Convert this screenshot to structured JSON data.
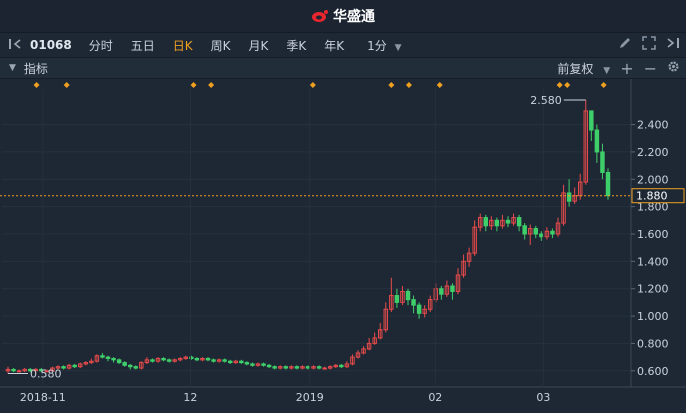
{
  "app": {
    "title": "华盛通"
  },
  "toolbar": {
    "stock_code": "01068",
    "periods": [
      "分时",
      "五日",
      "日K",
      "周K",
      "月K",
      "季K",
      "年K"
    ],
    "active_period": "日K",
    "interval": "1分"
  },
  "subbar": {
    "indicator_label": "指标",
    "adjust_label": "前复权"
  },
  "colors": {
    "up": "#e84b4b",
    "down": "#3fcf6a",
    "accent": "#f0a020",
    "background": "#1e2834"
  },
  "icons": [
    "expand-left-icon",
    "pencil-icon",
    "fullscreen-icon",
    "expand-right-icon",
    "collapse-icon",
    "plus-icon",
    "minus-icon",
    "gear-icon"
  ],
  "chart_data": {
    "type": "candlestick",
    "y_ticks": [
      "2.400",
      "2.200",
      "2.000",
      "1.800",
      "1.600",
      "1.400",
      "1.200",
      "1.000",
      "0.800",
      "0.600"
    ],
    "x_ticks": [
      "2018-11",
      "12",
      "2019",
      "02",
      "03"
    ],
    "ylim": [
      0.54,
      2.66
    ],
    "current_price": "1.880",
    "high_label": "2.580",
    "low_label": "0.580",
    "event_markers": 11,
    "candles": [
      [
        0.6,
        0.61,
        0.63,
        0.58
      ],
      [
        0.61,
        0.6,
        0.62,
        0.59
      ],
      [
        0.6,
        0.6,
        0.61,
        0.59
      ],
      [
        0.6,
        0.61,
        0.62,
        0.59
      ],
      [
        0.61,
        0.6,
        0.62,
        0.59
      ],
      [
        0.6,
        0.61,
        0.62,
        0.6
      ],
      [
        0.61,
        0.6,
        0.62,
        0.59
      ],
      [
        0.6,
        0.6,
        0.61,
        0.59
      ],
      [
        0.6,
        0.62,
        0.63,
        0.59
      ],
      [
        0.62,
        0.63,
        0.64,
        0.61
      ],
      [
        0.63,
        0.62,
        0.64,
        0.61
      ],
      [
        0.62,
        0.64,
        0.65,
        0.61
      ],
      [
        0.64,
        0.63,
        0.65,
        0.62
      ],
      [
        0.63,
        0.65,
        0.66,
        0.62
      ],
      [
        0.65,
        0.66,
        0.67,
        0.64
      ],
      [
        0.66,
        0.67,
        0.69,
        0.65
      ],
      [
        0.67,
        0.71,
        0.72,
        0.66
      ],
      [
        0.71,
        0.7,
        0.73,
        0.69
      ],
      [
        0.7,
        0.69,
        0.71,
        0.67
      ],
      [
        0.69,
        0.68,
        0.7,
        0.66
      ],
      [
        0.68,
        0.66,
        0.69,
        0.65
      ],
      [
        0.66,
        0.64,
        0.67,
        0.63
      ],
      [
        0.64,
        0.63,
        0.65,
        0.61
      ],
      [
        0.63,
        0.62,
        0.64,
        0.61
      ],
      [
        0.62,
        0.66,
        0.67,
        0.61
      ],
      [
        0.66,
        0.68,
        0.7,
        0.65
      ],
      [
        0.68,
        0.67,
        0.69,
        0.66
      ],
      [
        0.67,
        0.69,
        0.7,
        0.66
      ],
      [
        0.69,
        0.68,
        0.7,
        0.67
      ],
      [
        0.68,
        0.67,
        0.69,
        0.66
      ],
      [
        0.67,
        0.68,
        0.69,
        0.66
      ],
      [
        0.68,
        0.69,
        0.7,
        0.67
      ],
      [
        0.69,
        0.7,
        0.71,
        0.68
      ],
      [
        0.7,
        0.69,
        0.71,
        0.68
      ],
      [
        0.69,
        0.68,
        0.7,
        0.67
      ],
      [
        0.68,
        0.69,
        0.7,
        0.67
      ],
      [
        0.69,
        0.68,
        0.7,
        0.67
      ],
      [
        0.68,
        0.67,
        0.69,
        0.66
      ],
      [
        0.67,
        0.68,
        0.69,
        0.66
      ],
      [
        0.68,
        0.67,
        0.69,
        0.66
      ],
      [
        0.67,
        0.66,
        0.68,
        0.65
      ],
      [
        0.66,
        0.67,
        0.68,
        0.65
      ],
      [
        0.67,
        0.66,
        0.68,
        0.65
      ],
      [
        0.66,
        0.65,
        0.67,
        0.64
      ],
      [
        0.65,
        0.64,
        0.66,
        0.63
      ],
      [
        0.64,
        0.65,
        0.66,
        0.63
      ],
      [
        0.65,
        0.64,
        0.66,
        0.63
      ],
      [
        0.64,
        0.63,
        0.65,
        0.62
      ],
      [
        0.63,
        0.62,
        0.64,
        0.61
      ],
      [
        0.62,
        0.63,
        0.64,
        0.61
      ],
      [
        0.63,
        0.62,
        0.64,
        0.61
      ],
      [
        0.62,
        0.63,
        0.64,
        0.61
      ],
      [
        0.63,
        0.62,
        0.64,
        0.61
      ],
      [
        0.62,
        0.63,
        0.64,
        0.61
      ],
      [
        0.63,
        0.62,
        0.64,
        0.61
      ],
      [
        0.62,
        0.63,
        0.64,
        0.61
      ],
      [
        0.63,
        0.62,
        0.64,
        0.61
      ],
      [
        0.62,
        0.62,
        0.63,
        0.61
      ],
      [
        0.62,
        0.63,
        0.64,
        0.61
      ],
      [
        0.63,
        0.64,
        0.65,
        0.62
      ],
      [
        0.64,
        0.63,
        0.65,
        0.62
      ],
      [
        0.63,
        0.65,
        0.67,
        0.62
      ],
      [
        0.65,
        0.7,
        0.72,
        0.64
      ],
      [
        0.7,
        0.73,
        0.75,
        0.69
      ],
      [
        0.73,
        0.76,
        0.78,
        0.72
      ],
      [
        0.76,
        0.8,
        0.84,
        0.75
      ],
      [
        0.8,
        0.84,
        0.88,
        0.79
      ],
      [
        0.84,
        0.9,
        0.95,
        0.83
      ],
      [
        0.9,
        1.05,
        1.1,
        0.88
      ],
      [
        1.05,
        1.15,
        1.28,
        1.03
      ],
      [
        1.15,
        1.1,
        1.2,
        1.06
      ],
      [
        1.1,
        1.18,
        1.22,
        1.08
      ],
      [
        1.18,
        1.12,
        1.2,
        1.08
      ],
      [
        1.12,
        1.08,
        1.15,
        1.02
      ],
      [
        1.08,
        1.02,
        1.1,
        0.98
      ],
      [
        1.02,
        1.05,
        1.08,
        0.99
      ],
      [
        1.05,
        1.12,
        1.15,
        1.03
      ],
      [
        1.12,
        1.2,
        1.24,
        1.1
      ],
      [
        1.2,
        1.16,
        1.22,
        1.12
      ],
      [
        1.16,
        1.22,
        1.26,
        1.14
      ],
      [
        1.22,
        1.18,
        1.24,
        1.12
      ],
      [
        1.18,
        1.3,
        1.35,
        1.16
      ],
      [
        1.3,
        1.4,
        1.45,
        1.28
      ],
      [
        1.4,
        1.46,
        1.5,
        1.36
      ],
      [
        1.46,
        1.65,
        1.7,
        1.44
      ],
      [
        1.65,
        1.72,
        1.75,
        1.62
      ],
      [
        1.72,
        1.66,
        1.74,
        1.62
      ],
      [
        1.66,
        1.7,
        1.73,
        1.63
      ],
      [
        1.7,
        1.66,
        1.72,
        1.62
      ],
      [
        1.66,
        1.7,
        1.74,
        1.64
      ],
      [
        1.7,
        1.68,
        1.73,
        1.65
      ],
      [
        1.68,
        1.72,
        1.75,
        1.66
      ],
      [
        1.72,
        1.66,
        1.74,
        1.62
      ],
      [
        1.66,
        1.6,
        1.68,
        1.56
      ],
      [
        1.6,
        1.64,
        1.67,
        1.52
      ],
      [
        1.64,
        1.6,
        1.66,
        1.57
      ],
      [
        1.6,
        1.58,
        1.62,
        1.55
      ],
      [
        1.58,
        1.62,
        1.65,
        1.56
      ],
      [
        1.62,
        1.6,
        1.64,
        1.57
      ],
      [
        1.6,
        1.68,
        1.72,
        1.58
      ],
      [
        1.68,
        1.9,
        1.96,
        1.66
      ],
      [
        1.9,
        1.84,
        2.0,
        1.8
      ],
      [
        1.84,
        1.88,
        1.94,
        1.82
      ],
      [
        1.88,
        1.98,
        2.04,
        1.85
      ],
      [
        1.98,
        2.5,
        2.58,
        1.96
      ],
      [
        2.5,
        2.36,
        2.5,
        2.28
      ],
      [
        2.36,
        2.2,
        2.4,
        2.12
      ],
      [
        2.2,
        2.05,
        2.26,
        2.0
      ],
      [
        2.05,
        1.88,
        2.08,
        1.85
      ]
    ]
  }
}
